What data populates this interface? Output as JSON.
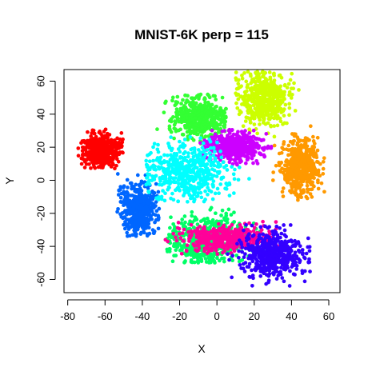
{
  "chart_data": {
    "type": "scatter",
    "title": "MNIST-6K perp = 115",
    "xlabel": "X",
    "ylabel": "Y",
    "xlim": [
      -82,
      66
    ],
    "ylim": [
      -68,
      67
    ],
    "xticks": [
      -80,
      -60,
      -40,
      -20,
      0,
      20,
      40,
      60
    ],
    "yticks": [
      -60,
      -40,
      -20,
      0,
      20,
      40,
      60
    ],
    "xtick_labels": [
      "-80",
      "-60",
      "-40",
      "-20",
      "0",
      "20",
      "40",
      "60"
    ],
    "ytick_labels": [
      "-60",
      "-40",
      "-20",
      "0",
      "20",
      "40",
      "60"
    ],
    "grid": false,
    "legend": "none",
    "series": [
      {
        "color": "#FF0000",
        "cluster_center": [
          -62,
          18
        ],
        "approx_extent": {
          "x": [
            -75,
            -50
          ],
          "y": [
            7,
            31
          ]
        },
        "count": 520
      },
      {
        "color": "#0066FF",
        "cluster_center": [
          -42,
          -17
        ],
        "approx_extent": {
          "x": [
            -55,
            -31
          ],
          "y": [
            -34,
            8
          ]
        },
        "count": 480
      },
      {
        "color": "#33FF33",
        "cluster_center": [
          -10,
          38
        ],
        "approx_extent": {
          "x": [
            -33,
            5
          ],
          "y": [
            22,
            52
          ]
        },
        "count": 520
      },
      {
        "color": "#CCFF00",
        "cluster_center": [
          25,
          50
        ],
        "approx_extent": {
          "x": [
            10,
            45
          ],
          "y": [
            24,
            66
          ]
        },
        "count": 520
      },
      {
        "color": "#CC00FF",
        "cluster_center": [
          10,
          20
        ],
        "approx_extent": {
          "x": [
            -9,
            30
          ],
          "y": [
            9,
            31
          ]
        },
        "count": 500
      },
      {
        "color": "#00FFFF",
        "cluster_center": [
          -15,
          5
        ],
        "approx_extent": {
          "x": [
            -38,
            22
          ],
          "y": [
            -13,
            28
          ]
        },
        "count": 520
      },
      {
        "color": "#FF9900",
        "cluster_center": [
          45,
          8
        ],
        "approx_extent": {
          "x": [
            30,
            58
          ],
          "y": [
            -12,
            33
          ]
        },
        "count": 480
      },
      {
        "color": "#00FF66",
        "cluster_center": [
          -5,
          -37
        ],
        "approx_extent": {
          "x": [
            -27,
            27
          ],
          "y": [
            -50,
            -12
          ]
        },
        "count": 560
      },
      {
        "color": "#FF0099",
        "cluster_center": [
          5,
          -35
        ],
        "approx_extent": {
          "x": [
            -28,
            33
          ],
          "y": [
            -45,
            -25
          ]
        },
        "count": 460
      },
      {
        "color": "#3300FF",
        "cluster_center": [
          30,
          -45
        ],
        "approx_extent": {
          "x": [
            5,
            50
          ],
          "y": [
            -64,
            -27
          ]
        },
        "count": 500
      }
    ]
  }
}
